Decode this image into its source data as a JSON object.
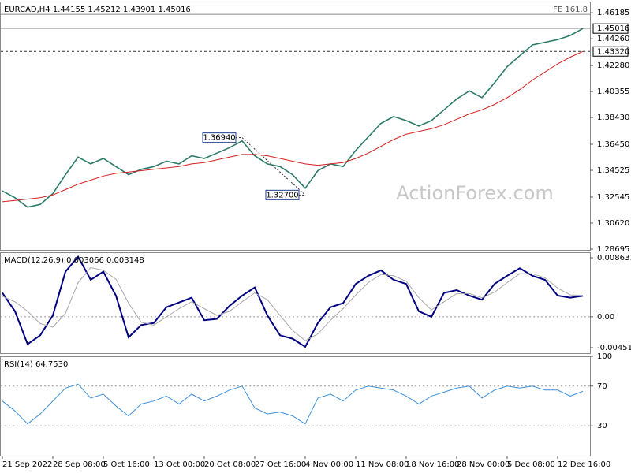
{
  "chart_data": [
    {
      "type": "line",
      "title": "EURCAD,H4 1.44155 1.45212 1.43901 1.45016",
      "watermark": "ActionForex.com",
      "xlim": [
        0,
        46
      ],
      "ylim": [
        1.28636,
        1.4701
      ],
      "yticks": [
        1.46185,
        {
          "value": 1.4426,
          "label": "1.44260"
        },
        {
          "value": 1.4228,
          "label": "1.42280"
        },
        1.40355,
        {
          "value": 1.3843,
          "label": "1.38430"
        },
        {
          "value": 1.3645,
          "label": "1.36450"
        },
        1.34525,
        1.32545,
        {
          "value": 1.3062,
          "label": "1.30620"
        },
        1.28695
      ],
      "series": [
        {
          "color": "#2b7a67",
          "values": [
            1.33,
            1.325,
            1.318,
            1.32,
            1.328,
            1.342,
            1.355,
            1.35,
            1.354,
            1.348,
            1.342,
            1.346,
            1.348,
            1.352,
            1.35,
            1.356,
            1.354,
            1.358,
            1.362,
            1.367,
            1.356,
            1.35,
            1.348,
            1.342,
            1.332,
            1.345,
            1.35,
            1.348,
            1.36,
            1.37,
            1.38,
            1.385,
            1.382,
            1.378,
            1.382,
            1.39,
            1.398,
            1.404,
            1.399,
            1.41,
            1.422,
            1.43,
            1.438,
            1.44,
            1.442,
            1.445,
            1.45016
          ]
        },
        {
          "color": "#d42020",
          "values": [
            1.322,
            1.323,
            1.324,
            1.325,
            1.327,
            1.331,
            1.335,
            1.338,
            1.341,
            1.343,
            1.344,
            1.345,
            1.346,
            1.347,
            1.348,
            1.35,
            1.351,
            1.353,
            1.355,
            1.357,
            1.357,
            1.356,
            1.354,
            1.352,
            1.35,
            1.349,
            1.35,
            1.351,
            1.354,
            1.358,
            1.363,
            1.368,
            1.372,
            1.374,
            1.376,
            1.379,
            1.383,
            1.387,
            1.39,
            1.394,
            1.399,
            1.405,
            1.412,
            1.418,
            1.424,
            1.429,
            1.4332
          ]
        }
      ],
      "annotations": [
        {
          "x": 19,
          "value": 1.3694,
          "label": "1.36940"
        },
        {
          "x": 24,
          "value": 1.327,
          "label": "1.32700"
        }
      ],
      "price_levels": [
        1.45016,
        {
          "value": 1.4332,
          "label": "1.43320"
        }
      ],
      "level_styles": [
        "solid",
        "dashed"
      ],
      "fibo": {
        "value": 1.4607,
        "label": "FE 161.8"
      }
    },
    {
      "type": "line",
      "title": "MACD(12,26,9) 0.003066 0.003148",
      "xlim": [
        0,
        46
      ],
      "ylim": [
        -0.00532,
        0.00944
      ],
      "yticks": [
        0.008631,
        {
          "value": 0,
          "label": "0.00"
        },
        -0.004511
      ],
      "levels": [
        0
      ],
      "series": [
        {
          "color": "#000080",
          "values": [
            0.0035,
            0.0008,
            -0.004,
            -0.0027,
            0.0002,
            0.0066,
            0.0088,
            0.0054,
            0.0066,
            0.0031,
            -0.003,
            -0.0012,
            -0.0009,
            0.0014,
            0.0021,
            0.0028,
            -0.0005,
            -0.0003,
            0.0016,
            0.0031,
            0.0043,
            0.0002,
            -0.0027,
            -0.0032,
            -0.0044,
            -0.0009,
            0.0014,
            0.002,
            0.0048,
            0.006,
            0.0068,
            0.0054,
            0.0048,
            0.0008,
            0,
            0.0035,
            0.0039,
            0.0031,
            0.0025,
            0.0048,
            0.006,
            0.0071,
            0.006,
            0.0054,
            0.0031,
            0.0028,
            0.003066
          ]
        },
        {
          "color": "#a8a8a8",
          "values": [
            0.003,
            0.0022,
            0.0008,
            -0.001,
            -0.0015,
            0.0005,
            0.005,
            0.0072,
            0.0068,
            0.0055,
            0.002,
            -0.0008,
            -0.0012,
            0,
            0.0012,
            0.0022,
            0.0012,
            0.0002,
            0.0008,
            0.0022,
            0.0035,
            0.0025,
            0.0002,
            -0.002,
            -0.0035,
            -0.0025,
            -0.0005,
            0.0012,
            0.0032,
            0.005,
            0.0062,
            0.006,
            0.0052,
            0.0028,
            0.001,
            0.0022,
            0.0034,
            0.0034,
            0.0028,
            0.0036,
            0.005,
            0.0063,
            0.0063,
            0.0057,
            0.0042,
            0.0032,
            0.003148
          ]
        }
      ]
    },
    {
      "type": "line",
      "title": "RSI(14) 64.7530",
      "xlim": [
        0,
        46
      ],
      "ylim": [
        0,
        100
      ],
      "yticks": [
        100,
        70,
        30
      ],
      "levels": [
        70,
        30
      ],
      "xticks": [
        {
          "value": 0,
          "label": "21 Sep 2022"
        },
        {
          "value": 4,
          "label": "28 Sep 08:00"
        },
        {
          "value": 8,
          "label": "5 Oct 16:00"
        },
        {
          "value": 12,
          "label": "13 Oct 00:00"
        },
        {
          "value": 16,
          "label": "20 Oct 08:00"
        },
        {
          "value": 20,
          "label": "27 Oct 16:00"
        },
        {
          "value": 24,
          "label": "4 Nov 00:00"
        },
        {
          "value": 28,
          "label": "11 Nov 08:00"
        },
        {
          "value": 32,
          "label": "18 Nov 16:00"
        },
        {
          "value": 36,
          "label": "28 Nov 00:00"
        },
        {
          "value": 40,
          "label": "5 Dec 08:00"
        },
        {
          "value": 44,
          "label": "12 Dec 16:00"
        }
      ],
      "series": [
        {
          "color": "#3d8fd6",
          "values": [
            55,
            45,
            32,
            42,
            55,
            68,
            72,
            58,
            62,
            50,
            40,
            52,
            55,
            60,
            52,
            62,
            55,
            60,
            66,
            70,
            48,
            42,
            44,
            40,
            32,
            58,
            62,
            55,
            66,
            70,
            68,
            66,
            60,
            52,
            60,
            64,
            68,
            70,
            58,
            66,
            70,
            68,
            70,
            66,
            66,
            60,
            64.753
          ]
        }
      ]
    }
  ]
}
